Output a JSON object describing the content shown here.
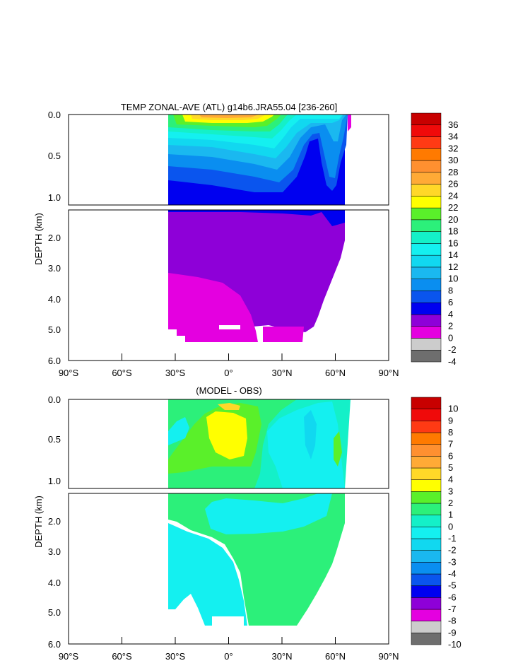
{
  "figure": {
    "title": "TEMP ZONAL-AVE (ATL) g14b6.JRA55.04 [236-260]",
    "subtitle": "(MODEL - OBS)"
  },
  "chart_data": [
    {
      "type": "heatmap",
      "title": "TEMP ZONAL-AVE (ATL) g14b6.JRA55.04 [236-260]",
      "ylabel": "DEPTH (km)",
      "xlabel": "",
      "x_ticks": [
        "90°S",
        "60°S",
        "30°S",
        "0°",
        "30°N",
        "60°N",
        "90°N"
      ],
      "x_ticks_values": [
        -90,
        -60,
        -30,
        0,
        30,
        60,
        90
      ],
      "y_ticks_upper": [
        "0.0",
        "0.5",
        "1.0"
      ],
      "y_ticks_lower": [
        "2.0",
        "3.0",
        "4.0",
        "5.0",
        "6.0"
      ],
      "ylim": [
        0,
        6
      ],
      "xlim": [
        -90,
        90
      ],
      "colorbar": {
        "labels": [
          "-4",
          "-2",
          "0",
          "2",
          "4",
          "6",
          "8",
          "10",
          "12",
          "14",
          "16",
          "18",
          "20",
          "22",
          "24",
          "26",
          "28",
          "30",
          "32",
          "34",
          "36"
        ],
        "colors": [
          "#6e6e6e",
          "#cccccc",
          "#e400e0",
          "#8e00d8",
          "#0000f0",
          "#0a55ee",
          "#0a8ef0",
          "#1ab8f0",
          "#11d8f0",
          "#14f0f0",
          "#14f0c8",
          "#2cf07a",
          "#5af02a",
          "#ffff00",
          "#ffd828",
          "#ffaa36",
          "#ff9030",
          "#ff7a00",
          "#ff3a14",
          "#f00a0a",
          "#c80000"
        ]
      },
      "regions": {
        "upper": [
          {
            "name": "cold-deep",
            "value": 5,
            "color": "#0000f0"
          },
          {
            "name": "band-7",
            "value": 7,
            "color": "#0a55ee"
          },
          {
            "name": "band-9",
            "value": 9,
            "color": "#0a8ef0"
          },
          {
            "name": "band-11",
            "value": 11,
            "color": "#1ab8f0"
          },
          {
            "name": "band-13",
            "value": 13,
            "color": "#11d8f0"
          },
          {
            "name": "band-15",
            "value": 15,
            "color": "#14f0f0"
          },
          {
            "name": "band-17",
            "value": 17,
            "color": "#14f0c8"
          },
          {
            "name": "band-19",
            "value": 19,
            "color": "#2cf07a"
          },
          {
            "name": "band-21",
            "value": 21,
            "color": "#5af02a"
          },
          {
            "name": "band-23",
            "value": 23,
            "color": "#ffff00"
          },
          {
            "name": "band-25",
            "value": 25,
            "color": "#ffd828"
          },
          {
            "name": "band-27",
            "value": 27,
            "color": "#ffaa36"
          }
        ],
        "lower": [
          {
            "name": "deep-3",
            "value": 3,
            "color": "#8e00d8"
          },
          {
            "name": "bottom-1",
            "value": 1,
            "color": "#e400e0"
          }
        ]
      }
    },
    {
      "type": "heatmap",
      "title": "(MODEL - OBS)",
      "ylabel": "DEPTH (km)",
      "xlabel": "",
      "x_ticks": [
        "90°S",
        "60°S",
        "30°S",
        "0°",
        "30°N",
        "60°N",
        "90°N"
      ],
      "x_ticks_values": [
        -90,
        -60,
        -30,
        0,
        30,
        60,
        90
      ],
      "y_ticks_upper": [
        "0.0",
        "0.5",
        "1.0"
      ],
      "y_ticks_lower": [
        "2.0",
        "3.0",
        "4.0",
        "5.0",
        "6.0"
      ],
      "ylim": [
        0,
        6
      ],
      "xlim": [
        -90,
        90
      ],
      "colorbar": {
        "labels": [
          "-10",
          "-9",
          "-8",
          "-7",
          "-6",
          "-5",
          "-4",
          "-3",
          "-2",
          "-1",
          "0",
          "1",
          "2",
          "3",
          "4",
          "5",
          "6",
          "7",
          "8",
          "9",
          "10"
        ],
        "colors": [
          "#6e6e6e",
          "#cccccc",
          "#e400e0",
          "#8e00d8",
          "#0000f0",
          "#0a55ee",
          "#0a8ef0",
          "#1ab8f0",
          "#11d8f0",
          "#14f0f0",
          "#14f0c8",
          "#2cf07a",
          "#5af02a",
          "#ffff00",
          "#ffd828",
          "#ffaa36",
          "#ff9030",
          "#ff7a00",
          "#ff3a14",
          "#f00a0a",
          "#c80000"
        ]
      }
    }
  ]
}
